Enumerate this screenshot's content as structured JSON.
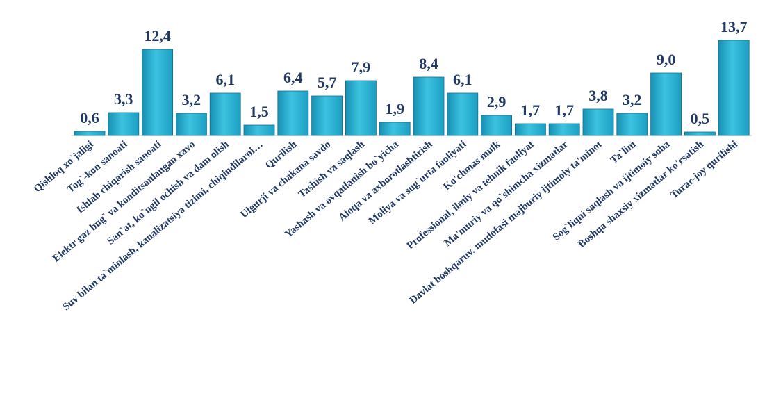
{
  "chart_data": {
    "type": "bar",
    "title": "",
    "xlabel": "",
    "ylabel": "",
    "ylim": [
      0,
      13.7
    ],
    "grid": false,
    "legend": "none",
    "bar_color": "#2ab0d0",
    "label_color": "#1f3864",
    "categories": [
      "Qishloq xo`jaligi",
      "Tog`-kon sanoati",
      "Ishlab chiqarish sanoati",
      "Elektr gaz bug` va konditsanlangan xavo",
      "San`at, ko`ngil ochish va dam olish",
      "Suv bilan ta`minlash, kanalizatsiya tizimi, chiqindilarni…",
      "Qurilish",
      "Ulgurji va chakana savdo",
      "Tashish va saqlash",
      "Yashash va ovqatlanish bo`yicha",
      "Aloqa va axborotlashtirish",
      "Moliya va sug`urta faoliyati",
      "Ko'chmas mulk",
      "Professional, ilmiy va tehnik faoliyat",
      "Ma'muriy va qo`shimcha xizmatlar",
      "Davlat boshqaruv, mudofasi majburiy ijtimoiy ta'minot",
      "Ta`lim",
      "Sog`liqni saqlash va ijtimoiy soha",
      "Boshqa shaxsiy xizmatlar ko'rsatish",
      "Turar-joy qurilishi"
    ],
    "values": [
      0.6,
      3.3,
      12.4,
      3.2,
      6.1,
      1.5,
      6.4,
      5.7,
      7.9,
      1.9,
      8.4,
      6.1,
      2.9,
      1.7,
      1.7,
      3.8,
      3.2,
      9.0,
      0.5,
      13.7
    ],
    "value_labels": [
      "0,6",
      "3,3",
      "12,4",
      "3,2",
      "6,1",
      "1,5",
      "6,4",
      "5,7",
      "7,9",
      "1,9",
      "8,4",
      "6,1",
      "2,9",
      "1,7",
      "1,7",
      "3,8",
      "3,2",
      "9,0",
      "0,5",
      "13,7"
    ]
  }
}
